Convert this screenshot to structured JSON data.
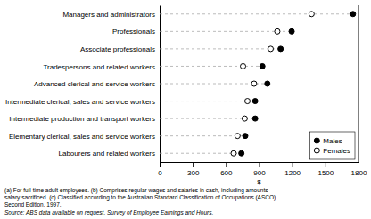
{
  "chart_data": {
    "type": "dot",
    "categories": [
      "Managers and administrators",
      "Professionals",
      "Associate professionals",
      "Tradespersons and related workers",
      "Advanced clerical and service workers",
      "Intermediate clerical, sales and service workers",
      "Intermediate production and transport workers",
      "Elementary clerical, sales and service workers",
      "Labourers and related workers"
    ],
    "series": [
      {
        "name": "Males",
        "color": "#000000",
        "marker": "circle",
        "values": [
          1750,
          1195,
          1095,
          930,
          975,
          865,
          865,
          775,
          740
        ]
      },
      {
        "name": "Females",
        "color": "#000000",
        "marker": "open-circle",
        "values": [
          1375,
          1065,
          1005,
          755,
          855,
          795,
          770,
          705,
          670
        ]
      }
    ],
    "xlim": [
      0,
      1800
    ],
    "xticks": [
      0,
      300,
      600,
      900,
      1200,
      1500,
      1800
    ],
    "x_label": "$",
    "grid": false,
    "legend": "bottom-right",
    "annotations": [
      "(a) For full-time adult employees. (b) Comprises regular wages and salaries in cash, including amounts",
      "salary sacrificed.  (c) Classified according to the Australian Standard Classification of Occupations (ASCO)",
      "Second Edition, 1997.",
      "Source: ABS data available on request, Survey of Employee Earnings and Hours."
    ]
  }
}
